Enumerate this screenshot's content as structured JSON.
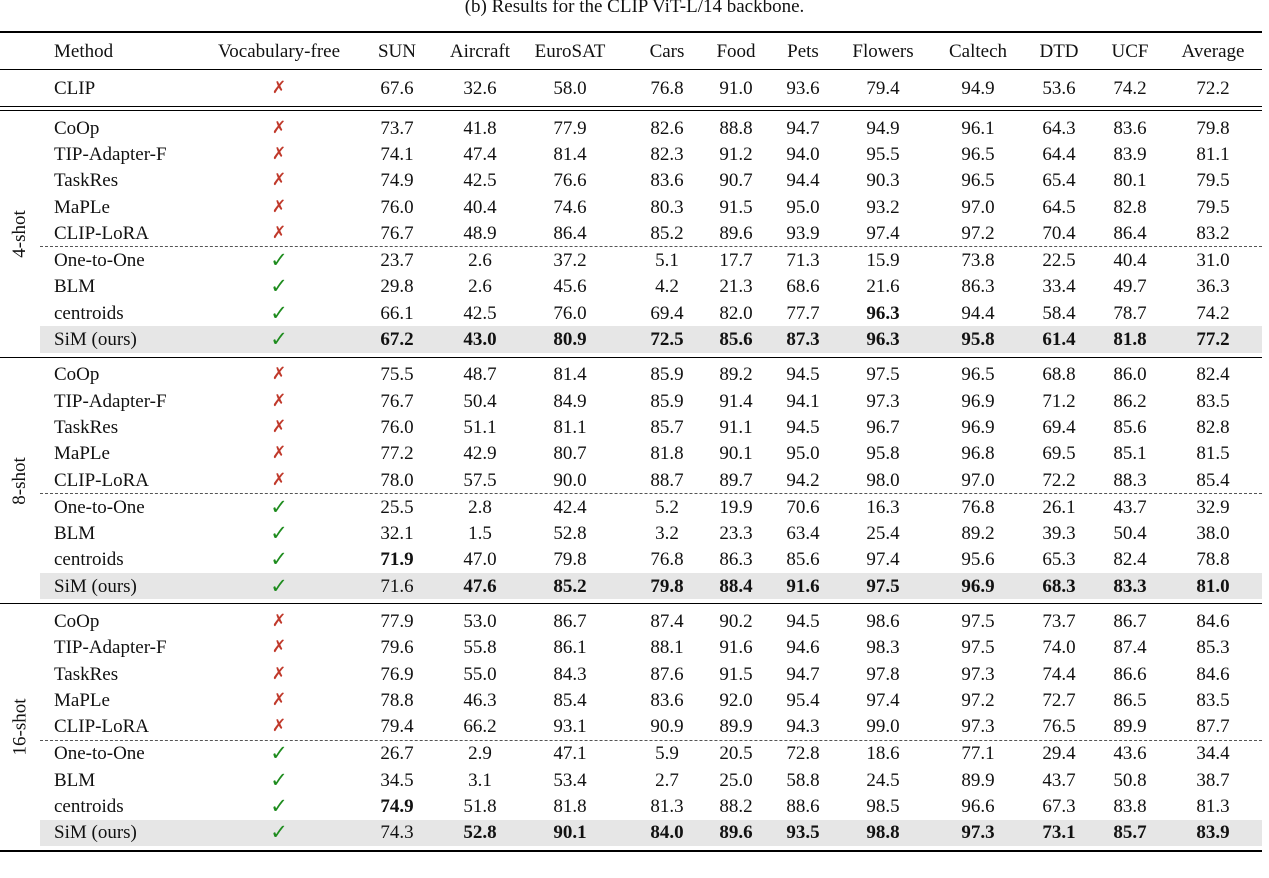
{
  "caption": "(b) Results for the CLIP ViT-L/14 backbone.",
  "columns": [
    "Method",
    "Vocabulary-free",
    "SUN",
    "Aircraft",
    "EuroSAT",
    "Cars",
    "Food",
    "Pets",
    "Flowers",
    "Caltech",
    "DTD",
    "UCF",
    "Average"
  ],
  "baseline": {
    "method": "CLIP",
    "vocab_free": false,
    "values": [
      "67.6",
      "32.6",
      "58.0",
      "76.8",
      "91.0",
      "93.6",
      "79.4",
      "94.9",
      "53.6",
      "74.2",
      "72.2"
    ]
  },
  "groups": [
    {
      "label": "4-shot",
      "rows": [
        {
          "method": "CoOp",
          "vocab_free": false,
          "values": [
            "73.7",
            "41.8",
            "77.9",
            "82.6",
            "88.8",
            "94.7",
            "94.9",
            "96.1",
            "64.3",
            "83.6",
            "79.8"
          ]
        },
        {
          "method": "TIP-Adapter-F",
          "vocab_free": false,
          "values": [
            "74.1",
            "47.4",
            "81.4",
            "82.3",
            "91.2",
            "94.0",
            "95.5",
            "96.5",
            "64.4",
            "83.9",
            "81.1"
          ]
        },
        {
          "method": "TaskRes",
          "vocab_free": false,
          "values": [
            "74.9",
            "42.5",
            "76.6",
            "83.6",
            "90.7",
            "94.4",
            "90.3",
            "96.5",
            "65.4",
            "80.1",
            "79.5"
          ]
        },
        {
          "method": "MaPLe",
          "vocab_free": false,
          "values": [
            "76.0",
            "40.4",
            "74.6",
            "80.3",
            "91.5",
            "95.0",
            "93.2",
            "97.0",
            "64.5",
            "82.8",
            "79.5"
          ]
        },
        {
          "method": "CLIP-LoRA",
          "vocab_free": false,
          "values": [
            "76.7",
            "48.9",
            "86.4",
            "85.2",
            "89.6",
            "93.9",
            "97.4",
            "97.2",
            "70.4",
            "86.4",
            "83.2"
          ]
        },
        {
          "method": "One-to-One",
          "vocab_free": true,
          "dash_before": true,
          "values": [
            "23.7",
            "2.6",
            "37.2",
            "5.1",
            "17.7",
            "71.3",
            "15.9",
            "73.8",
            "22.5",
            "40.4",
            "31.0"
          ]
        },
        {
          "method": "BLM",
          "vocab_free": true,
          "values": [
            "29.8",
            "2.6",
            "45.6",
            "4.2",
            "21.3",
            "68.6",
            "21.6",
            "86.3",
            "33.4",
            "49.7",
            "36.3"
          ]
        },
        {
          "method": "centroids",
          "vocab_free": true,
          "values": [
            "66.1",
            "42.5",
            "76.0",
            "69.4",
            "82.0",
            "77.7",
            "96.3",
            "94.4",
            "58.4",
            "78.7",
            "74.2"
          ],
          "bold": [
            6
          ]
        },
        {
          "method": "SiM (ours)",
          "vocab_free": true,
          "highlight": true,
          "values": [
            "67.2",
            "43.0",
            "80.9",
            "72.5",
            "85.6",
            "87.3",
            "96.3",
            "95.8",
            "61.4",
            "81.8",
            "77.2"
          ],
          "bold": [
            0,
            1,
            2,
            3,
            4,
            5,
            6,
            7,
            8,
            9,
            10
          ]
        }
      ]
    },
    {
      "label": "8-shot",
      "rows": [
        {
          "method": "CoOp",
          "vocab_free": false,
          "values": [
            "75.5",
            "48.7",
            "81.4",
            "85.9",
            "89.2",
            "94.5",
            "97.5",
            "96.5",
            "68.8",
            "86.0",
            "82.4"
          ]
        },
        {
          "method": "TIP-Adapter-F",
          "vocab_free": false,
          "values": [
            "76.7",
            "50.4",
            "84.9",
            "85.9",
            "91.4",
            "94.1",
            "97.3",
            "96.9",
            "71.2",
            "86.2",
            "83.5"
          ]
        },
        {
          "method": "TaskRes",
          "vocab_free": false,
          "values": [
            "76.0",
            "51.1",
            "81.1",
            "85.7",
            "91.1",
            "94.5",
            "96.7",
            "96.9",
            "69.4",
            "85.6",
            "82.8"
          ]
        },
        {
          "method": "MaPLe",
          "vocab_free": false,
          "values": [
            "77.2",
            "42.9",
            "80.7",
            "81.8",
            "90.1",
            "95.0",
            "95.8",
            "96.8",
            "69.5",
            "85.1",
            "81.5"
          ]
        },
        {
          "method": "CLIP-LoRA",
          "vocab_free": false,
          "values": [
            "78.0",
            "57.5",
            "90.0",
            "88.7",
            "89.7",
            "94.2",
            "98.0",
            "97.0",
            "72.2",
            "88.3",
            "85.4"
          ]
        },
        {
          "method": "One-to-One",
          "vocab_free": true,
          "dash_before": true,
          "values": [
            "25.5",
            "2.8",
            "42.4",
            "5.2",
            "19.9",
            "70.6",
            "16.3",
            "76.8",
            "26.1",
            "43.7",
            "32.9"
          ]
        },
        {
          "method": "BLM",
          "vocab_free": true,
          "values": [
            "32.1",
            "1.5",
            "52.8",
            "3.2",
            "23.3",
            "63.4",
            "25.4",
            "89.2",
            "39.3",
            "50.4",
            "38.0"
          ]
        },
        {
          "method": "centroids",
          "vocab_free": true,
          "values": [
            "71.9",
            "47.0",
            "79.8",
            "76.8",
            "86.3",
            "85.6",
            "97.4",
            "95.6",
            "65.3",
            "82.4",
            "78.8"
          ],
          "bold": [
            0
          ]
        },
        {
          "method": "SiM (ours)",
          "vocab_free": true,
          "highlight": true,
          "values": [
            "71.6",
            "47.6",
            "85.2",
            "79.8",
            "88.4",
            "91.6",
            "97.5",
            "96.9",
            "68.3",
            "83.3",
            "81.0"
          ],
          "bold": [
            1,
            2,
            3,
            4,
            5,
            6,
            7,
            8,
            9,
            10
          ]
        }
      ]
    },
    {
      "label": "16-shot",
      "rows": [
        {
          "method": "CoOp",
          "vocab_free": false,
          "values": [
            "77.9",
            "53.0",
            "86.7",
            "87.4",
            "90.2",
            "94.5",
            "98.6",
            "97.5",
            "73.7",
            "86.7",
            "84.6"
          ]
        },
        {
          "method": "TIP-Adapter-F",
          "vocab_free": false,
          "values": [
            "79.6",
            "55.8",
            "86.1",
            "88.1",
            "91.6",
            "94.6",
            "98.3",
            "97.5",
            "74.0",
            "87.4",
            "85.3"
          ]
        },
        {
          "method": "TaskRes",
          "vocab_free": false,
          "values": [
            "76.9",
            "55.0",
            "84.3",
            "87.6",
            "91.5",
            "94.7",
            "97.8",
            "97.3",
            "74.4",
            "86.6",
            "84.6"
          ]
        },
        {
          "method": "MaPLe",
          "vocab_free": false,
          "values": [
            "78.8",
            "46.3",
            "85.4",
            "83.6",
            "92.0",
            "95.4",
            "97.4",
            "97.2",
            "72.7",
            "86.5",
            "83.5"
          ]
        },
        {
          "method": "CLIP-LoRA",
          "vocab_free": false,
          "values": [
            "79.4",
            "66.2",
            "93.1",
            "90.9",
            "89.9",
            "94.3",
            "99.0",
            "97.3",
            "76.5",
            "89.9",
            "87.7"
          ]
        },
        {
          "method": "One-to-One",
          "vocab_free": true,
          "dash_before": true,
          "values": [
            "26.7",
            "2.9",
            "47.1",
            "5.9",
            "20.5",
            "72.8",
            "18.6",
            "77.1",
            "29.4",
            "43.6",
            "34.4"
          ]
        },
        {
          "method": "BLM",
          "vocab_free": true,
          "values": [
            "34.5",
            "3.1",
            "53.4",
            "2.7",
            "25.0",
            "58.8",
            "24.5",
            "89.9",
            "43.7",
            "50.8",
            "38.7"
          ]
        },
        {
          "method": "centroids",
          "vocab_free": true,
          "values": [
            "74.9",
            "51.8",
            "81.8",
            "81.3",
            "88.2",
            "88.6",
            "98.5",
            "96.6",
            "67.3",
            "83.8",
            "81.3"
          ],
          "bold": [
            0
          ]
        },
        {
          "method": "SiM (ours)",
          "vocab_free": true,
          "highlight": true,
          "values": [
            "74.3",
            "52.8",
            "90.1",
            "84.0",
            "89.6",
            "93.5",
            "98.8",
            "97.3",
            "73.1",
            "85.7",
            "83.9"
          ],
          "bold": [
            1,
            2,
            3,
            4,
            5,
            6,
            7,
            8,
            9,
            10
          ]
        }
      ]
    }
  ],
  "symbols": {
    "yes": "✓",
    "no": "✗"
  }
}
